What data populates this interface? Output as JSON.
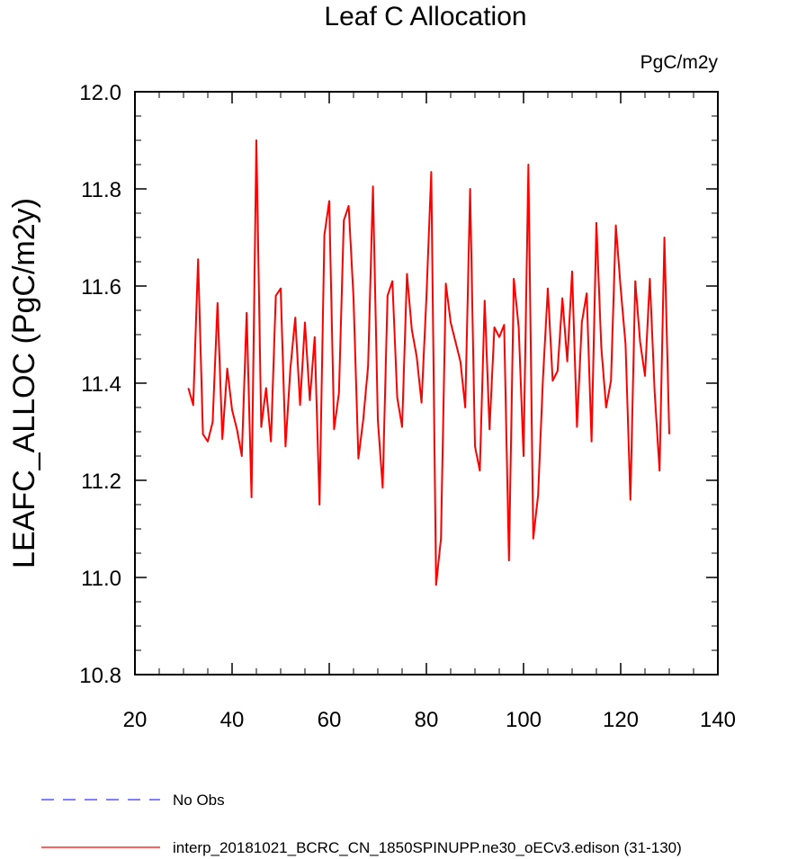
{
  "chart_data": {
    "type": "line",
    "title": "Leaf C Allocation",
    "units_label": "PgC/m2y",
    "xlabel": "",
    "ylabel": "LEAFC_ALLOC  (PgC/m2y)",
    "xlim": [
      20,
      140
    ],
    "ylim": [
      10.8,
      12.0
    ],
    "xticks": [
      "20",
      "40",
      "60",
      "80",
      "100",
      "120",
      "140"
    ],
    "yticks": [
      "10.8",
      "11.0",
      "11.2",
      "11.4",
      "11.6",
      "11.8",
      "12.0"
    ],
    "grid": false,
    "legend_position": "bottom-left",
    "series": [
      {
        "name": "No Obs",
        "color": "#3333ff",
        "dash": "dashed",
        "x": [],
        "values": []
      },
      {
        "name": "interp_20181021_BCRC_CN_1850SPINUPP.ne30_oECv3.edison (31-130)",
        "color": "#ff0000",
        "dash": "solid",
        "x": [
          31,
          32,
          33,
          34,
          35,
          36,
          37,
          38,
          39,
          40,
          41,
          42,
          43,
          44,
          45,
          46,
          47,
          48,
          49,
          50,
          51,
          52,
          53,
          54,
          55,
          56,
          57,
          58,
          59,
          60,
          61,
          62,
          63,
          64,
          65,
          66,
          67,
          68,
          69,
          70,
          71,
          72,
          73,
          74,
          75,
          76,
          77,
          78,
          79,
          80,
          81,
          82,
          83,
          84,
          85,
          86,
          87,
          88,
          89,
          90,
          91,
          92,
          93,
          94,
          95,
          96,
          97,
          98,
          99,
          100,
          101,
          102,
          103,
          104,
          105,
          106,
          107,
          108,
          109,
          110,
          111,
          112,
          113,
          114,
          115,
          116,
          117,
          118,
          119,
          120,
          121,
          122,
          123,
          124,
          125,
          126,
          127,
          128,
          129,
          130
        ],
        "values": [
          11.39,
          11.355,
          11.655,
          11.295,
          11.28,
          11.32,
          11.565,
          11.285,
          11.43,
          11.345,
          11.305,
          11.25,
          11.545,
          11.165,
          11.9,
          11.31,
          11.39,
          11.28,
          11.58,
          11.595,
          11.27,
          11.43,
          11.535,
          11.355,
          11.525,
          11.365,
          11.495,
          11.15,
          11.705,
          11.775,
          11.305,
          11.38,
          11.735,
          11.765,
          11.575,
          11.245,
          11.325,
          11.435,
          11.805,
          11.325,
          11.185,
          11.58,
          11.61,
          11.37,
          11.31,
          11.625,
          11.51,
          11.455,
          11.36,
          11.575,
          11.835,
          10.985,
          11.08,
          11.605,
          11.525,
          11.485,
          11.445,
          11.35,
          11.8,
          11.27,
          11.22,
          11.57,
          11.305,
          11.515,
          11.495,
          11.52,
          11.035,
          11.615,
          11.515,
          11.25,
          11.85,
          11.08,
          11.17,
          11.41,
          11.595,
          11.405,
          11.425,
          11.575,
          11.445,
          11.63,
          11.31,
          11.525,
          11.585,
          11.28,
          11.73,
          11.475,
          11.35,
          11.405,
          11.725,
          11.595,
          11.48,
          11.16,
          11.61,
          11.485,
          11.415,
          11.615,
          11.38,
          11.22,
          11.7,
          11.295
        ]
      }
    ]
  }
}
